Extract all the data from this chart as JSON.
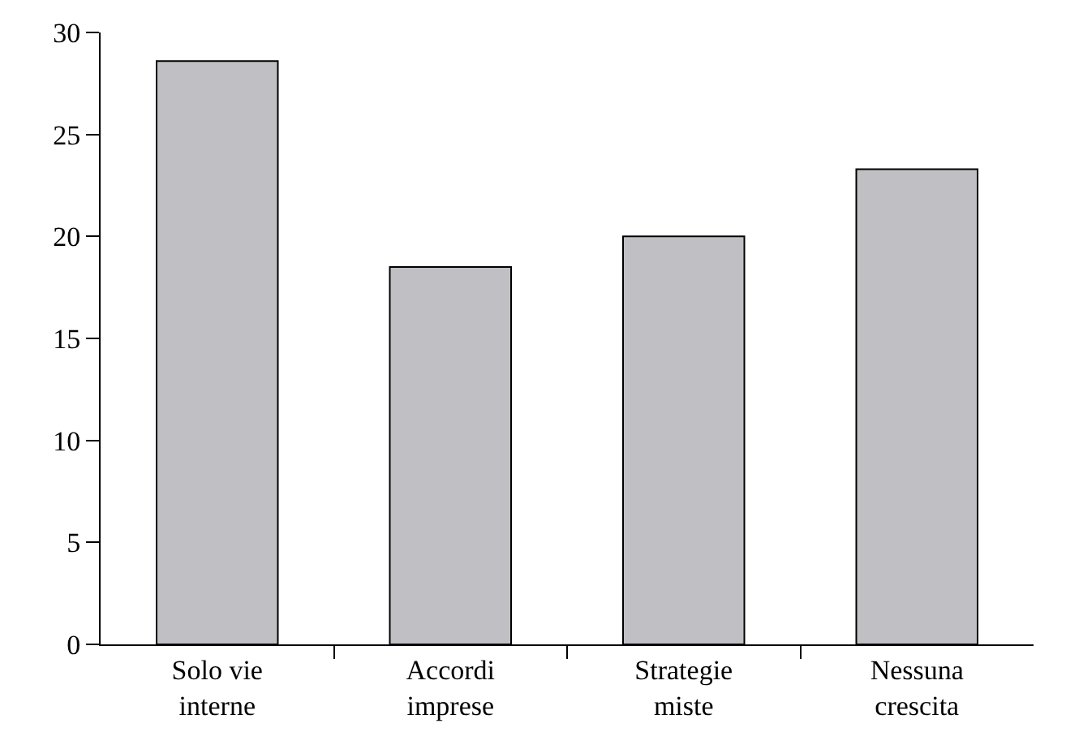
{
  "chart_data": {
    "type": "bar",
    "categories": [
      "Solo vie\ninterne",
      "Accordi\nimprese",
      "Strategie\nmiste",
      "Nessuna\ncrescita"
    ],
    "values": [
      28.6,
      18.5,
      20.0,
      23.3
    ],
    "color": "#c0c0c4",
    "ylim": [
      0,
      30
    ],
    "yticks": [
      0,
      5,
      10,
      15,
      20,
      25,
      30
    ]
  }
}
